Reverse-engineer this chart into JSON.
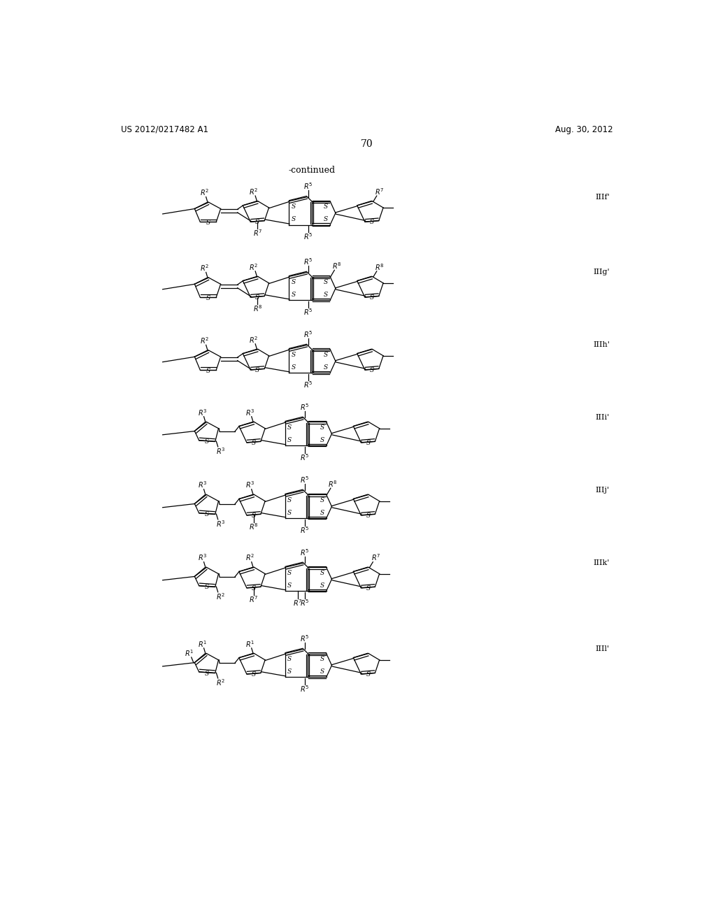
{
  "page_header_left": "US 2012/0217482 A1",
  "page_header_right": "Aug. 30, 2012",
  "page_number": "70",
  "continued_label": "-continued",
  "background_color": "#ffffff",
  "text_color": "#000000",
  "structure_labels": [
    "IIIf'",
    "IIIg'",
    "IIIh'",
    "IIIi'",
    "IIIj'",
    "IIIk'",
    "IIIl'"
  ],
  "structure_y": [
    1130,
    990,
    855,
    720,
    585,
    450,
    290
  ],
  "structure_types": [
    "f",
    "g",
    "h",
    "i",
    "j",
    "k",
    "l"
  ]
}
